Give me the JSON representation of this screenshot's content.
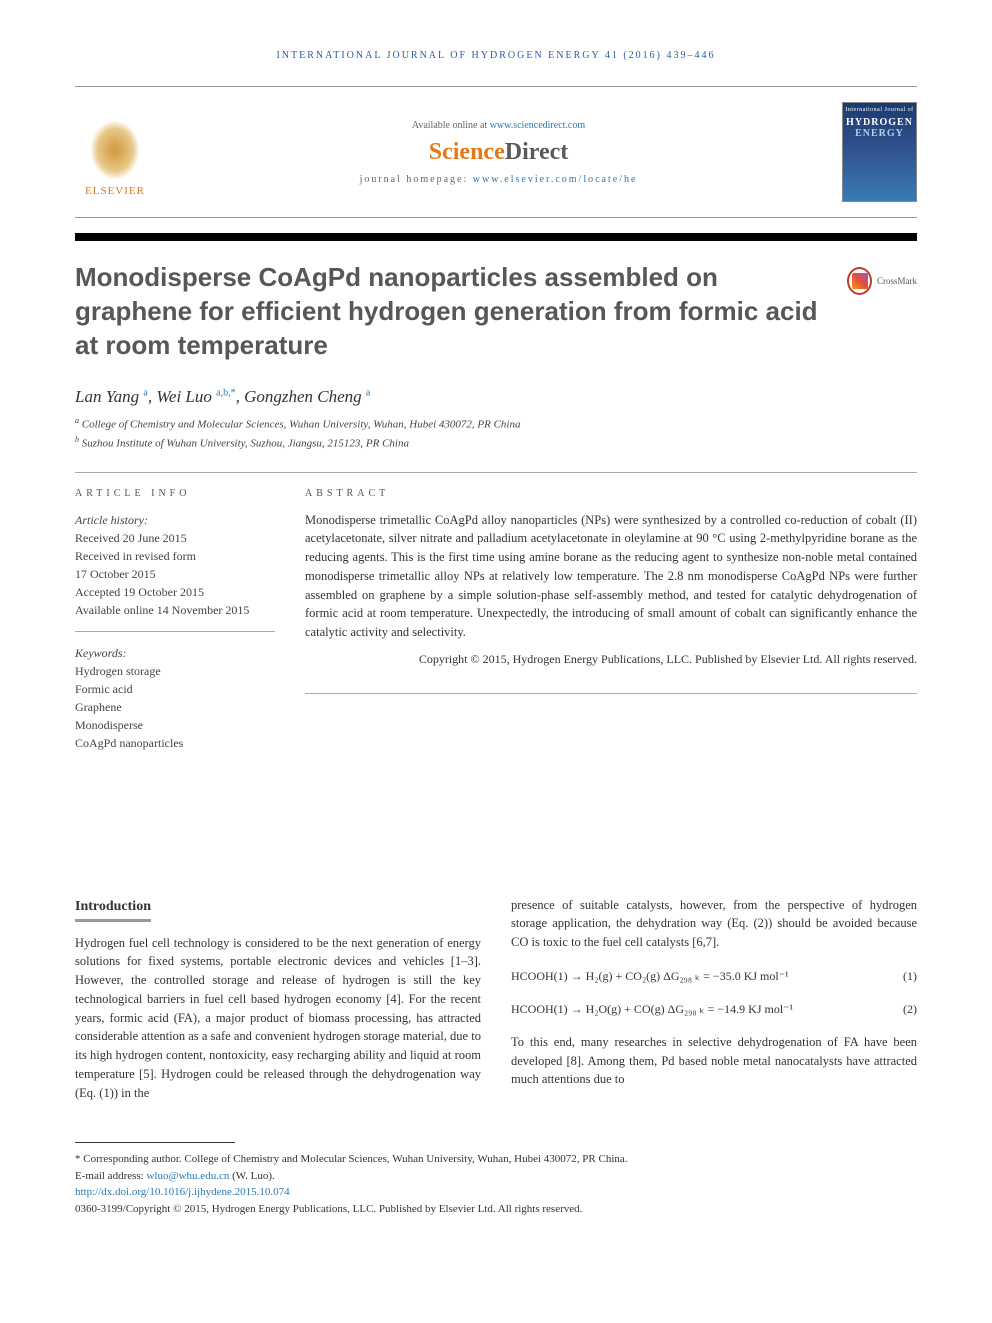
{
  "runningHeader": "INTERNATIONAL JOURNAL OF HYDROGEN ENERGY 41 (2016) 439–446",
  "header": {
    "availableText": "Available online at ",
    "availableLink": "www.sciencedirect.com",
    "publisherName": "ELSEVIER",
    "sdOrange": "Science",
    "sdGray": "Direct",
    "homepageLabel": "journal homepage: ",
    "homepageLink": "www.elsevier.com/locate/he",
    "coverLine1": "International Journal of",
    "coverHydrogen": "HYDROGEN",
    "coverEnergy": "ENERGY"
  },
  "title": "Monodisperse CoAgPd nanoparticles assembled on graphene for efficient hydrogen generation from formic acid at room temperature",
  "crossmark": "CrossMark",
  "authors": {
    "a1": "Lan Yang",
    "a1sup": "a",
    "a2": "Wei Luo",
    "a2sup": "a,b,*",
    "a3": "Gongzhen Cheng",
    "a3sup": "a"
  },
  "affiliations": {
    "a": "College of Chemistry and Molecular Sciences, Wuhan University, Wuhan, Hubei 430072, PR China",
    "b": "Suzhou Institute of Wuhan University, Suzhou, Jiangsu, 215123, PR China"
  },
  "articleInfo": {
    "heading": "ARTICLE INFO",
    "historyLabel": "Article history:",
    "received": "Received 20 June 2015",
    "revised1": "Received in revised form",
    "revised2": "17 October 2015",
    "accepted": "Accepted 19 October 2015",
    "online": "Available online 14 November 2015",
    "keywordsLabel": "Keywords:",
    "k1": "Hydrogen storage",
    "k2": "Formic acid",
    "k3": "Graphene",
    "k4": "Monodisperse",
    "k5": "CoAgPd nanoparticles"
  },
  "abstract": {
    "heading": "ABSTRACT",
    "text": "Monodisperse trimetallic CoAgPd alloy nanoparticles (NPs) were synthesized by a controlled co-reduction of cobalt (II) acetylacetonate, silver nitrate and palladium acetylacetonate in oleylamine at 90 °C using 2-methylpyridine borane as the reducing agents. This is the first time using amine borane as the reducing agent to synthesize non-noble metal contained monodisperse trimetallic alloy NPs at relatively low temperature. The 2.8 nm monodisperse CoAgPd NPs were further assembled on graphene by a simple solution-phase self-assembly method, and tested for catalytic dehydrogenation of formic acid at room temperature. Unexpectedly, the introducing of small amount of cobalt can significantly enhance the catalytic activity and selectivity.",
    "copyright": "Copyright © 2015, Hydrogen Energy Publications, LLC. Published by Elsevier Ltd. All rights reserved."
  },
  "body": {
    "introHeading": "Introduction",
    "leftPara": "Hydrogen fuel cell technology is considered to be the next generation of energy solutions for fixed systems, portable electronic devices and vehicles [1–3]. However, the controlled storage and release of hydrogen is still the key technological barriers in fuel cell based hydrogen economy [4]. For the recent years, formic acid (FA), a major product of biomass processing, has attracted considerable attention as a safe and convenient hydrogen storage material, due to its high hydrogen content, nontoxicity, easy recharging ability and liquid at room temperature [5]. Hydrogen could be released through the dehydrogenation way (Eq. (1)) in the",
    "rightPara1": "presence of suitable catalysts, however, from the perspective of hydrogen storage application, the dehydration way (Eq. (2)) should be avoided because CO is toxic to the fuel cell catalysts [6,7].",
    "eq1": "HCOOH(1) → H₂(g) + CO₂(g) ΔG₂₉₈ ₖ = −35.0 KJ mol⁻¹",
    "eq1num": "(1)",
    "eq2": "HCOOH(1) → H₂O(g) + CO(g) ΔG₂₉₈ ₖ = −14.9 KJ mol⁻¹",
    "eq2num": "(2)",
    "rightPara2": "To this end, many researches in selective dehydrogenation of FA have been developed [8]. Among them, Pd based noble metal nanocatalysts have attracted much attentions due to"
  },
  "footer": {
    "corrLabel": "* Corresponding author.",
    "corrText": " College of Chemistry and Molecular Sciences, Wuhan University, Wuhan, Hubei 430072, PR China.",
    "emailLabel": "E-mail address: ",
    "email": "wluo@whu.edu.cn",
    "emailSuffix": " (W. Luo).",
    "doi": "http://dx.doi.org/10.1016/j.ijhydene.2015.10.074",
    "issn": "0360-3199/Copyright © 2015, Hydrogen Energy Publications, LLC. Published by Elsevier Ltd. All rights reserved."
  },
  "colors": {
    "headerBlue": "#2a5caa",
    "linkBlue": "#2a7ab0",
    "elsevierOrange": "#e67817",
    "titleGray": "#575757",
    "textGray": "#333333"
  }
}
